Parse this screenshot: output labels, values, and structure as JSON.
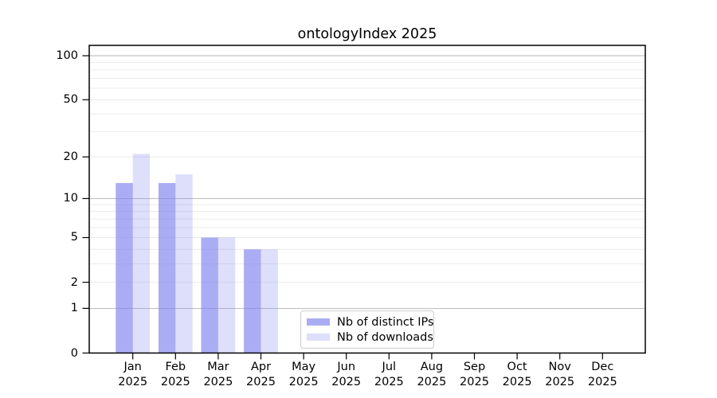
{
  "chart_data": {
    "type": "bar",
    "title": "ontologyIndex 2025",
    "x_year": "2025",
    "categories": [
      "Jan",
      "Feb",
      "Mar",
      "Apr",
      "May",
      "Jun",
      "Jul",
      "Aug",
      "Sep",
      "Oct",
      "Nov",
      "Dec"
    ],
    "series": [
      {
        "name": "Nb of distinct IPs",
        "color": "#7c81ec",
        "opacity": 0.65,
        "values": [
          13,
          13,
          5,
          4,
          0,
          0,
          0,
          0,
          0,
          0,
          0,
          0
        ]
      },
      {
        "name": "Nb of downloads",
        "color": "#7c81ec",
        "opacity": 0.25,
        "values": [
          21,
          15,
          5,
          4,
          0,
          0,
          0,
          0,
          0,
          0,
          0,
          0
        ]
      }
    ],
    "y_axis": {
      "scale": "log1p",
      "tick_labels": [
        "0",
        "1",
        "2",
        "5",
        "10",
        "20",
        "50",
        "100"
      ],
      "tick_values": [
        0,
        1,
        2,
        5,
        10,
        20,
        50,
        100
      ],
      "major_gridlines": [
        1,
        10,
        100
      ],
      "minor_gridlines": [
        2,
        3,
        4,
        5,
        6,
        7,
        8,
        9,
        20,
        30,
        40,
        50,
        60,
        70,
        80,
        90
      ],
      "range": [
        0,
        117
      ]
    },
    "legend": {
      "position": "lower center"
    },
    "style": {
      "bar_rendered_dark": "#a6a9f1",
      "bar_rendered_light": "#dadcfa",
      "major_grid_color": "#b4b4b4",
      "minor_grid_color": "#e9e9e9",
      "axis_color": "#000000",
      "text_color": "#000000",
      "background": "#ffffff",
      "legend_border": "#cccccc"
    }
  }
}
